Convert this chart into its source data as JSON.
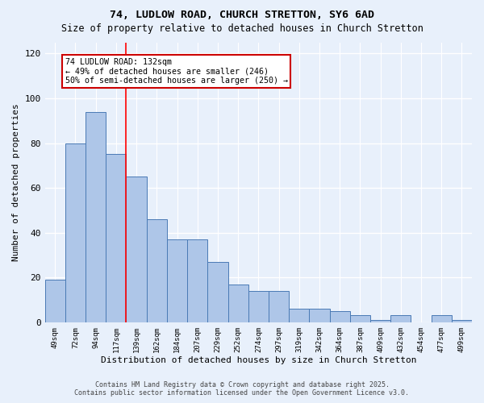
{
  "title1": "74, LUDLOW ROAD, CHURCH STRETTON, SY6 6AD",
  "title2": "Size of property relative to detached houses in Church Stretton",
  "xlabel": "Distribution of detached houses by size in Church Stretton",
  "ylabel": "Number of detached properties",
  "categories": [
    "49sqm",
    "72sqm",
    "94sqm",
    "117sqm",
    "139sqm",
    "162sqm",
    "184sqm",
    "207sqm",
    "229sqm",
    "252sqm",
    "274sqm",
    "297sqm",
    "319sqm",
    "342sqm",
    "364sqm",
    "387sqm",
    "409sqm",
    "432sqm",
    "454sqm",
    "477sqm",
    "499sqm"
  ],
  "values": [
    19,
    80,
    94,
    75,
    65,
    46,
    37,
    37,
    27,
    17,
    14,
    14,
    6,
    6,
    5,
    3,
    1,
    3,
    0,
    3,
    1
  ],
  "bar_color": "#aec6e8",
  "bar_edge_color": "#4a7ab5",
  "background_color": "#e8f0fb",
  "grid_color": "#ffffff",
  "redline_index": 4,
  "annotation_text": "74 LUDLOW ROAD: 132sqm\n← 49% of detached houses are smaller (246)\n50% of semi-detached houses are larger (250) →",
  "annotation_box_color": "#ffffff",
  "annotation_box_edge": "#cc0000",
  "ylim": [
    0,
    125
  ],
  "yticks": [
    0,
    20,
    40,
    60,
    80,
    100,
    120
  ],
  "footer1": "Contains HM Land Registry data © Crown copyright and database right 2025.",
  "footer2": "Contains public sector information licensed under the Open Government Licence v3.0."
}
